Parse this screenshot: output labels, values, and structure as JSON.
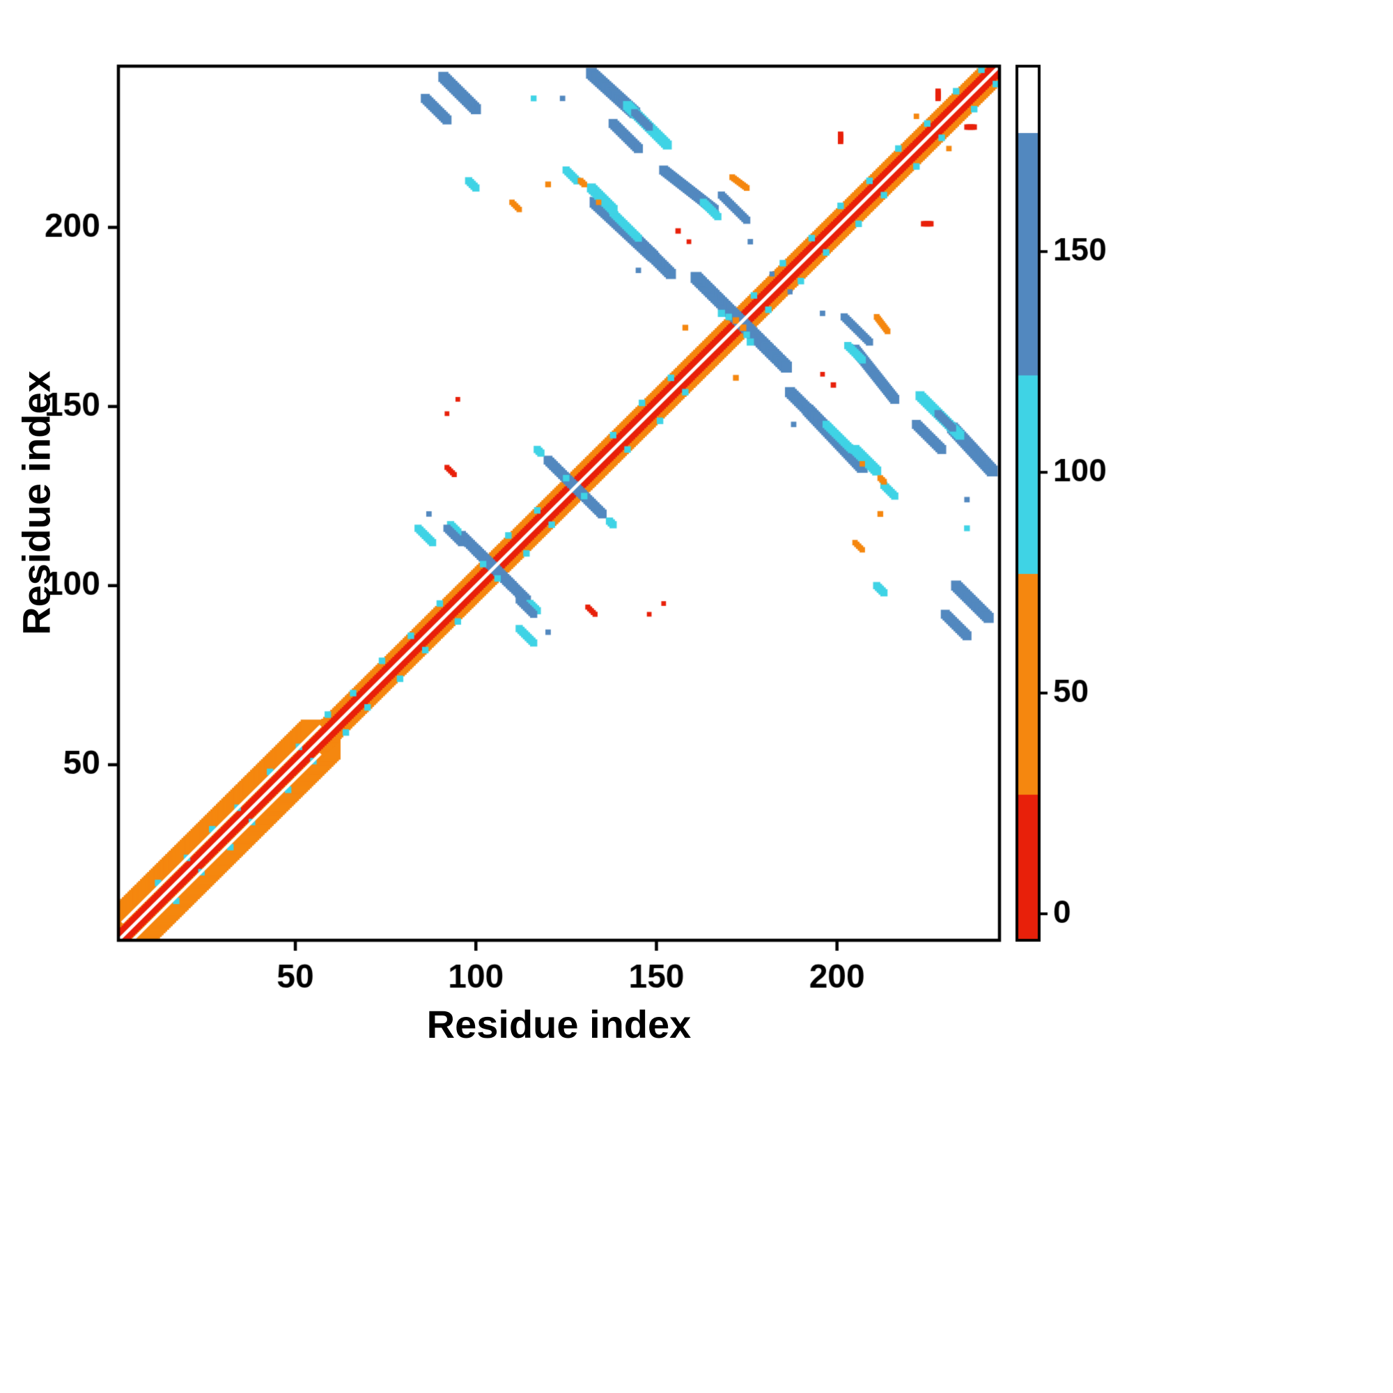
{
  "chart_data": {
    "type": "heatmap",
    "title": "",
    "xlabel": "Residue index",
    "ylabel": "Residue index",
    "xlim": [
      1,
      245
    ],
    "ylim": [
      1,
      245
    ],
    "xticks": [
      50,
      100,
      150,
      200
    ],
    "yticks": [
      50,
      100,
      150,
      200
    ],
    "grid": false,
    "background": "#ffffff",
    "palette": {
      "red": "#e8200a",
      "orange": "#f5870f",
      "cyan": "#3fd3e5",
      "blue": "#5288bf",
      "white": "#ffffff"
    },
    "colorbar": {
      "ticks": [
        0,
        50,
        100,
        150
      ],
      "range": [
        -6,
        192
      ],
      "position": "right",
      "stops": [
        {
          "upTo": 27,
          "color": "red"
        },
        {
          "upTo": 77,
          "color": "orange"
        },
        {
          "upTo": 122,
          "color": "cyan"
        },
        {
          "upTo": 177,
          "color": "blue"
        },
        {
          "upTo": 999,
          "color": "white"
        }
      ]
    },
    "diagonal": {
      "white_center_width": 0.9,
      "red_halfwidth": 1.6,
      "orange_halfwidth": 2.8,
      "helix_region": {
        "start": 2,
        "end": 57,
        "orange_halfwidth": 5.5,
        "white_offset": 3.9,
        "white_offset_width": 0.8
      }
    },
    "near_diagonal_speckles": {
      "color": "cyan",
      "size": 1.8,
      "points": [
        [
          12,
          5
        ],
        [
          20,
          4
        ],
        [
          27,
          5
        ],
        [
          34,
          4
        ],
        [
          43,
          5
        ],
        [
          51,
          4
        ],
        [
          59,
          5
        ],
        [
          66,
          4
        ],
        [
          74,
          5
        ],
        [
          82,
          4
        ],
        [
          90,
          5
        ],
        [
          102,
          4
        ],
        [
          109,
          5
        ],
        [
          117,
          4
        ],
        [
          125,
          5
        ],
        [
          138,
          4
        ],
        [
          146,
          5
        ],
        [
          154,
          4
        ],
        [
          170,
          5
        ],
        [
          177,
          4
        ],
        [
          185,
          5
        ],
        [
          193,
          4
        ],
        [
          201,
          5
        ],
        [
          209,
          4
        ],
        [
          217,
          5
        ],
        [
          225,
          4
        ],
        [
          233,
          5
        ],
        [
          240,
          4
        ]
      ]
    },
    "contact_segments": [
      [
        86,
        236,
        92,
        230,
        2.5,
        "blue"
      ],
      [
        132,
        243,
        144,
        232,
        3,
        "blue"
      ],
      [
        138,
        229,
        145,
        222,
        2.5,
        "blue"
      ],
      [
        152,
        216,
        166,
        205,
        2.5,
        "blue"
      ],
      [
        163,
        207,
        167,
        203,
        2,
        "cyan"
      ],
      [
        168,
        209,
        175,
        202,
        2,
        "blue"
      ],
      [
        133,
        207,
        149,
        192,
        3,
        "blue"
      ],
      [
        161,
        186,
        186,
        161,
        3,
        "blue"
      ],
      [
        168,
        176,
        168,
        176,
        2,
        "cyan"
      ],
      [
        172,
        174,
        172,
        174,
        1.8,
        "orange"
      ],
      [
        187,
        154,
        203,
        138,
        2.8,
        "blue"
      ],
      [
        197,
        145,
        204,
        138,
        2,
        "cyan"
      ],
      [
        205,
        138,
        211,
        132,
        2.5,
        "cyan"
      ],
      [
        207,
        134,
        207,
        134,
        1.5,
        "orange"
      ],
      [
        213,
        128,
        216,
        125,
        2,
        "cyan"
      ],
      [
        223,
        153,
        234,
        142,
        2.5,
        "cyan"
      ],
      [
        228,
        148,
        232,
        144,
        2,
        "blue"
      ],
      [
        233,
        100,
        242,
        91,
        2.8,
        "blue"
      ],
      [
        236,
        124,
        236,
        124,
        1.5,
        "blue"
      ],
      [
        96,
        114,
        110,
        100,
        2.5,
        "blue"
      ],
      [
        93,
        117,
        95,
        115,
        2,
        "cyan"
      ],
      [
        84,
        116,
        88,
        112,
        2,
        "cyan"
      ],
      [
        87,
        120,
        87,
        120,
        1.5,
        "blue"
      ],
      [
        120,
        135,
        135,
        120,
        2.4,
        "blue"
      ],
      [
        117,
        138,
        118,
        137,
        2,
        "cyan"
      ],
      [
        112,
        96,
        116,
        92,
        2,
        "blue"
      ],
      [
        98,
        213,
        100,
        211,
        2,
        "cyan"
      ],
      [
        116,
        236,
        116,
        236,
        1.6,
        "cyan"
      ],
      [
        120,
        212,
        120,
        212,
        1.6,
        "orange"
      ],
      [
        129,
        213,
        130,
        212,
        1.6,
        "orange"
      ],
      [
        171,
        214,
        175,
        211,
        1.6,
        "orange"
      ],
      [
        158,
        172,
        158,
        172,
        1.6,
        "orange"
      ],
      [
        156,
        199,
        156,
        199,
        1.5,
        "red"
      ],
      [
        159,
        196,
        159,
        196,
        1.3,
        "red"
      ],
      [
        224,
        201,
        226,
        201,
        1.5,
        "red"
      ],
      [
        228,
        238,
        228,
        236,
        1.5,
        "red"
      ],
      [
        92,
        148,
        92,
        148,
        1.3,
        "red"
      ],
      [
        95,
        152,
        95,
        152,
        1.3,
        "red"
      ],
      [
        94,
        131,
        94,
        131,
        1.2,
        "red"
      ],
      [
        131,
        94,
        133,
        92,
        1.4,
        "red"
      ],
      [
        145,
        188,
        145,
        188,
        1.5,
        "blue"
      ],
      [
        153,
        187,
        153,
        187,
        1.4,
        "blue"
      ],
      [
        222,
        231,
        222,
        231,
        1.5,
        "orange"
      ],
      [
        205,
        112,
        207,
        110,
        1.5,
        "orange"
      ],
      [
        196,
        176,
        196,
        176,
        1.5,
        "blue"
      ],
      [
        187,
        182,
        187,
        182,
        1.4,
        "blue"
      ]
    ]
  }
}
